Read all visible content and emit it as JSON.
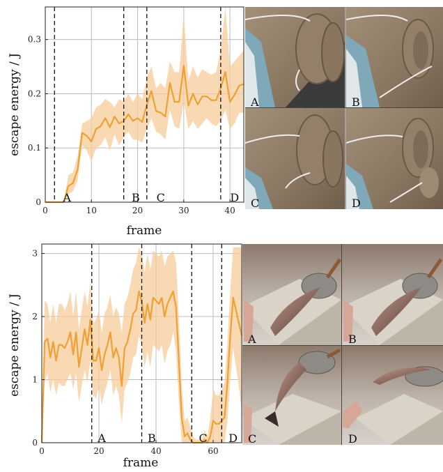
{
  "chart_data": [
    {
      "type": "line",
      "xlabel": "frame",
      "ylabel": "escape energy / J",
      "xlim": [
        0,
        43
      ],
      "ylim": [
        0,
        0.36
      ],
      "xticks": [
        "0",
        "10",
        "20",
        "30",
        "40"
      ],
      "yticks": [
        "0",
        "0.1",
        "0.2",
        "0.3"
      ],
      "grid": true,
      "color": "#f0a033",
      "band_color": "#f7cc99",
      "events": [
        {
          "frame": 2,
          "label": ""
        },
        {
          "frame": 17,
          "label": ""
        },
        {
          "frame": 22,
          "label": ""
        },
        {
          "frame": 38,
          "label": ""
        }
      ],
      "event_labels": [
        {
          "frame": 4.7,
          "label": "A"
        },
        {
          "frame": 19.6,
          "label": "B"
        },
        {
          "frame": 25,
          "label": "C"
        },
        {
          "frame": 41,
          "label": "D"
        }
      ],
      "series": [
        {
          "x": [
            0,
            1,
            2,
            3,
            4,
            5,
            6,
            7,
            8,
            9,
            10,
            11,
            12,
            13,
            14,
            15,
            16,
            17,
            18,
            19,
            20,
            21,
            22,
            23,
            24,
            25,
            26,
            27,
            28,
            29,
            30,
            31,
            32,
            33,
            34,
            35,
            36,
            37,
            38,
            39,
            40,
            41,
            42,
            43
          ],
          "mean": [
            0,
            0,
            0,
            0,
            0,
            0.03,
            0.035,
            0.06,
            0.128,
            0.122,
            0.112,
            0.135,
            0.14,
            0.155,
            0.138,
            0.158,
            0.145,
            0.15,
            0.162,
            0.15,
            0.155,
            0.148,
            0.18,
            0.205,
            0.168,
            0.165,
            0.158,
            0.22,
            0.185,
            0.185,
            0.252,
            0.178,
            0.2,
            0.18,
            0.195,
            0.195,
            0.188,
            0.188,
            0.21,
            0.24,
            0.185,
            0.198,
            0.215,
            0.218
          ],
          "upper": [
            0,
            0,
            0,
            0,
            0,
            0.05,
            0.055,
            0.085,
            0.145,
            0.15,
            0.155,
            0.175,
            0.18,
            0.19,
            0.185,
            0.175,
            0.19,
            0.185,
            0.2,
            0.185,
            0.2,
            0.19,
            0.23,
            0.25,
            0.21,
            0.22,
            0.21,
            0.26,
            0.24,
            0.24,
            0.345,
            0.225,
            0.25,
            0.23,
            0.245,
            0.24,
            0.235,
            0.24,
            0.28,
            0.36,
            0.25,
            0.26,
            0.27,
            0.28
          ],
          "lower": [
            0,
            0,
            0,
            0,
            0,
            0.015,
            0.02,
            0.04,
            0.105,
            0.095,
            0.075,
            0.1,
            0.105,
            0.12,
            0.095,
            0.125,
            0.105,
            0.12,
            0.13,
            0.115,
            0.115,
            0.11,
            0.135,
            0.155,
            0.13,
            0.125,
            0.115,
            0.17,
            0.14,
            0.135,
            0.185,
            0.135,
            0.15,
            0.135,
            0.145,
            0.155,
            0.145,
            0.14,
            0.15,
            0.17,
            0.135,
            0.145,
            0.165,
            0.165
          ]
        }
      ]
    },
    {
      "type": "line",
      "xlabel": "frame",
      "ylabel": "escape energy / J",
      "xlim": [
        0,
        70
      ],
      "ylim": [
        0,
        3.15
      ],
      "xticks": [
        "0",
        "20",
        "40",
        "60"
      ],
      "yticks": [
        "0",
        "1",
        "2",
        "3"
      ],
      "grid": true,
      "color": "#f0a033",
      "band_color": "#f7cc99",
      "events": [
        {
          "frame": 17.5,
          "label": ""
        },
        {
          "frame": 35,
          "label": ""
        },
        {
          "frame": 52.5,
          "label": ""
        },
        {
          "frame": 63,
          "label": ""
        }
      ],
      "event_labels": [
        {
          "frame": 21,
          "label": "A"
        },
        {
          "frame": 38.5,
          "label": "B"
        },
        {
          "frame": 56.5,
          "label": "C"
        },
        {
          "frame": 67,
          "label": "D"
        }
      ],
      "series": [
        {
          "x": [
            0,
            1,
            2,
            3,
            4,
            5,
            6,
            7,
            8,
            9,
            10,
            11,
            12,
            13,
            14,
            15,
            16,
            17,
            18,
            19,
            20,
            21,
            22,
            23,
            24,
            25,
            26,
            27,
            28,
            29,
            30,
            31,
            32,
            33,
            34,
            35,
            36,
            37,
            38,
            39,
            40,
            41,
            42,
            43,
            44,
            45,
            46,
            47,
            48,
            49,
            50,
            51,
            52,
            53,
            54,
            55,
            56,
            57,
            58,
            59,
            60,
            61,
            62,
            63,
            64,
            65,
            66,
            67,
            68,
            69,
            70
          ],
          "mean": [
            0,
            1.6,
            1.65,
            1.35,
            1.6,
            1.3,
            1.55,
            1.55,
            1.5,
            1.6,
            1.75,
            1.4,
            1.75,
            1.2,
            1.5,
            1.8,
            1.55,
            1.95,
            1.3,
            1.3,
            1.5,
            1.15,
            1.4,
            1.55,
            1.75,
            1.35,
            1.5,
            1.35,
            0.9,
            1.5,
            1.6,
            1.8,
            2.05,
            2.1,
            2.4,
            2.25,
            1.9,
            2.2,
            1.95,
            2.3,
            2.25,
            2.2,
            2.3,
            2.0,
            2.2,
            2.3,
            2.4,
            2.15,
            1.3,
            0.4,
            0.1,
            0.15,
            0.05,
            0.0,
            0.0,
            0.0,
            0.0,
            0.05,
            0.0,
            0.1,
            0.35,
            0.3,
            0.3,
            0.35,
            0.4,
            0.95,
            1.7,
            2.3,
            2.1,
            1.9,
            1.7
          ],
          "upper": [
            0.2,
            2.25,
            2.2,
            1.9,
            2.2,
            1.9,
            2.2,
            2.2,
            2.1,
            2.2,
            2.4,
            2.0,
            2.4,
            1.8,
            2.1,
            2.4,
            2.15,
            2.55,
            1.9,
            1.95,
            2.1,
            1.75,
            2.05,
            2.15,
            2.35,
            2.0,
            2.15,
            2.05,
            1.75,
            2.2,
            2.3,
            2.5,
            2.75,
            2.85,
            3.1,
            3.0,
            2.7,
            3.0,
            2.75,
            3.05,
            3.0,
            2.95,
            3.05,
            2.8,
            2.95,
            3.0,
            3.05,
            2.85,
            2.0,
            0.9,
            0.35,
            0.4,
            0.25,
            0.1,
            0.05,
            0.05,
            0.05,
            0.2,
            0.1,
            0.4,
            0.85,
            0.75,
            0.75,
            0.85,
            0.95,
            1.6,
            2.4,
            3.1,
            3.1,
            3.1,
            3.1
          ],
          "lower": [
            0,
            0.95,
            1.1,
            0.8,
            1.0,
            0.75,
            0.95,
            0.9,
            0.9,
            1.0,
            1.1,
            0.85,
            1.1,
            0.65,
            0.9,
            1.15,
            0.95,
            1.3,
            0.75,
            0.7,
            0.9,
            0.6,
            0.8,
            0.95,
            1.15,
            0.75,
            0.9,
            0.75,
            0.3,
            0.85,
            0.95,
            1.1,
            1.35,
            1.4,
            1.7,
            1.55,
            1.2,
            1.45,
            1.2,
            1.55,
            1.5,
            1.45,
            1.55,
            1.25,
            1.45,
            1.55,
            1.75,
            1.45,
            0.65,
            0.0,
            0.0,
            0.0,
            0.0,
            0.0,
            0.0,
            0.0,
            0.0,
            0.0,
            0.0,
            0.0,
            0.0,
            0.0,
            0.0,
            0.0,
            0.0,
            0.35,
            1.0,
            1.5,
            1.2,
            0.9,
            0.5
          ]
        }
      ]
    }
  ],
  "image_panels": {
    "top": [
      {
        "label": "A"
      },
      {
        "label": "B"
      },
      {
        "label": "C"
      },
      {
        "label": "D"
      }
    ],
    "bottom": [
      {
        "label": "A"
      },
      {
        "label": "B"
      },
      {
        "label": "C"
      },
      {
        "label": "D"
      }
    ]
  }
}
